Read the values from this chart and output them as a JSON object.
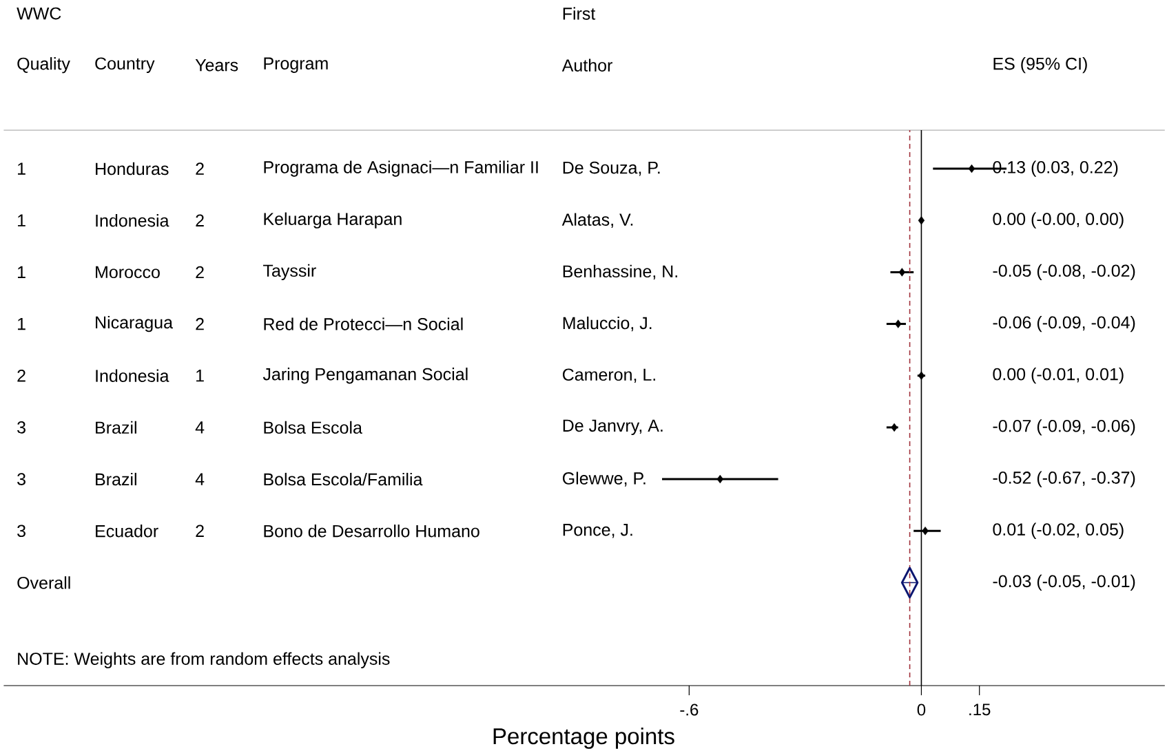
{
  "chart_data": {
    "type": "scatter",
    "orientation": "horizontal",
    "xlabel": "Percentage points",
    "categories": [
      "De Souza, P.",
      "Alatas, V.",
      "Benhassine, N.",
      "Maluccio, J.",
      "Cameron, L.",
      "De Janvry, A.",
      "Glewwe, P.",
      "Ponce, J.",
      null
    ],
    "series": [
      {
        "color": "#000000",
        "marker": "diamond",
        "values": [
          0.13,
          0.0,
          -0.05,
          -0.06,
          0.0,
          -0.07,
          -0.52,
          0.01,
          null
        ],
        "errors": [
          [
            0.03,
            0.22
          ],
          [
            0.0,
            0.0
          ],
          [
            -0.08,
            -0.02
          ],
          [
            -0.09,
            -0.04
          ],
          [
            -0.01,
            0.01
          ],
          [
            -0.09,
            -0.06
          ],
          [
            -0.67,
            -0.37
          ],
          [
            -0.02,
            0.05
          ],
          null
        ]
      },
      {
        "name": "Overall",
        "color": "#0c1670",
        "marker": "diamond",
        "values": [
          null,
          null,
          null,
          null,
          null,
          null,
          null,
          null,
          -0.03
        ],
        "errors": [
          null,
          null,
          null,
          null,
          null,
          null,
          null,
          null,
          [
            -0.05,
            -0.01
          ]
        ]
      }
    ],
    "xlim": [
      -2.371,
      0.629
    ],
    "xticks": [
      {
        "value": -0.6,
        "label": "-.6"
      },
      0,
      {
        "value": 0.15,
        "label": ".15"
      }
    ],
    "ref_lines": [
      {
        "axis": "x",
        "value": 0,
        "color": "#000000",
        "line_style": "solid"
      },
      {
        "axis": "x",
        "value": -0.03,
        "color": "#a0303a",
        "line_style": "dashed"
      }
    ],
    "annotations": [
      "WWC",
      "Quality",
      "Country",
      "Years",
      "Program",
      "First",
      "Author",
      "ES (95% CI)",
      "1",
      "Honduras",
      "2",
      "Programa de Asignaci—n Familiar II",
      "0.13 (0.03, 0.22)",
      "1",
      "Indonesia",
      "2",
      "Keluarga Harapan",
      "0.00 (-0.00, 0.00)",
      "1",
      "Morocco",
      "2",
      "Tayssir",
      "-0.05 (-0.08, -0.02)",
      "1",
      "Nicaragua",
      "2",
      "Red de Protecci—n Social",
      "-0.06 (-0.09, -0.04)",
      "2",
      "Indonesia",
      "1",
      "Jaring Pengamanan Social",
      "0.00 (-0.01, 0.01)",
      "3",
      "Brazil",
      "4",
      "Bolsa Escola",
      "-0.07 (-0.09, -0.06)",
      "3",
      "Brazil",
      "4",
      "Bolsa Escola/Familia",
      "-0.52 (-0.67, -0.37)",
      "3",
      "Ecuador",
      "2",
      "Bono de Desarrollo Humano",
      "0.01 (-0.02, 0.05)",
      "-0.03 (-0.05, -0.01)",
      "NOTE: Weights are from random effects analysis"
    ]
  }
}
